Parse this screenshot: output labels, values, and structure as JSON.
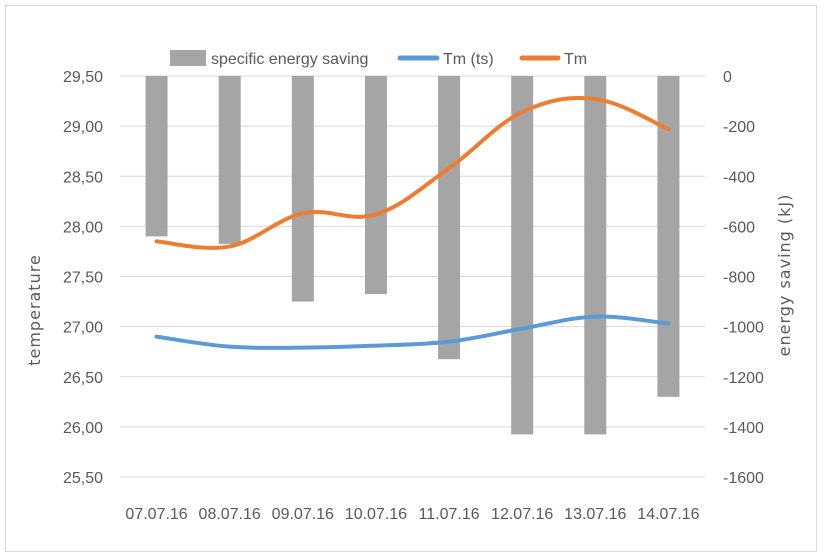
{
  "chart_data": {
    "type": "bar+line",
    "title": "",
    "categories": [
      "07.07.16",
      "08.07.16",
      "09.07.16",
      "10.07.16",
      "11.07.16",
      "12.07.16",
      "13.07.16",
      "14.07.16"
    ],
    "y_left": {
      "label": "temperature",
      "ylim": [
        25.5,
        29.5
      ],
      "ticks": [
        "29,50",
        "29,00",
        "28,50",
        "28,00",
        "27,50",
        "27,00",
        "26,50",
        "26,00",
        "25,50"
      ]
    },
    "y_right": {
      "label": "energy saving (kJ)",
      "ylim": [
        -1600,
        0
      ],
      "ticks": [
        "0",
        "-200",
        "-400",
        "-600",
        "-800",
        "-1000",
        "-1200",
        "-1400",
        "-1600"
      ]
    },
    "grid": true,
    "legend_position": "top",
    "bars": {
      "name": "specific energy saving",
      "axis": "right",
      "color": "#a5a5a5",
      "values": [
        -640,
        -670,
        -900,
        -870,
        -1130,
        -1430,
        -1430,
        -1280
      ]
    },
    "series": [
      {
        "name": "Tm (ts)",
        "axis": "left",
        "color": "#5b9bd5",
        "values": [
          26.9,
          26.8,
          26.79,
          26.81,
          26.85,
          26.98,
          27.1,
          27.03
        ]
      },
      {
        "name": "Tm",
        "axis": "left",
        "color": "#ed7d31",
        "values": [
          27.85,
          27.8,
          28.13,
          28.12,
          28.58,
          29.14,
          29.27,
          28.97
        ]
      }
    ]
  }
}
